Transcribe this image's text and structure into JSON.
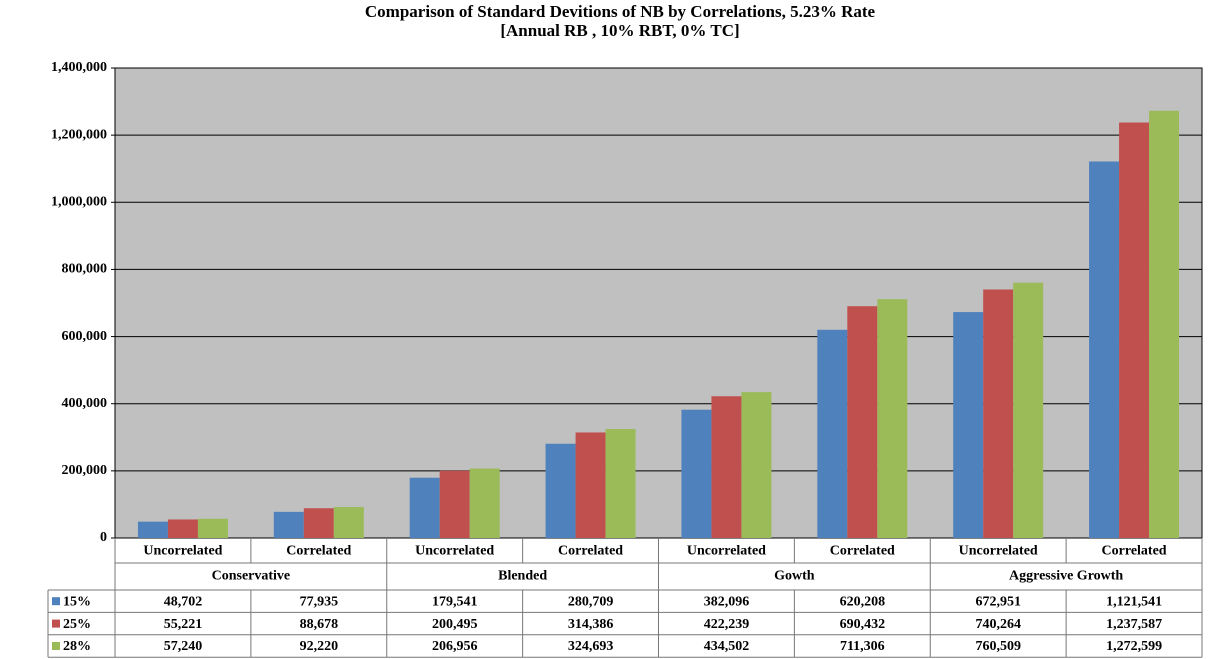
{
  "chart_data": {
    "type": "bar",
    "title": "Comparison of Standard Devitions of NB by Correlations, 5.23% Rate",
    "subtitle": "[Annual RB ,  10% RBT, 0% TC]",
    "categories": [
      "Uncorrelated",
      "Correlated",
      "Uncorrelated",
      "Correlated",
      "Uncorrelated",
      "Correlated",
      "Uncorrelated",
      "Correlated"
    ],
    "groups": [
      "Conservative",
      "Blended",
      "Gowth",
      "Aggressive Growth"
    ],
    "series": [
      {
        "name": "15%",
        "color": "#4f81bd",
        "values": [
          48702,
          77935,
          179541,
          280709,
          382096,
          620208,
          672951,
          1121541
        ],
        "value_labels": [
          "48,702",
          "77,935",
          "179,541",
          "280,709",
          "382,096",
          "620,208",
          "672,951",
          "1,121,541"
        ]
      },
      {
        "name": "25%",
        "color": "#c0504d",
        "values": [
          55221,
          88678,
          200495,
          314386,
          422239,
          690432,
          740264,
          1237587
        ],
        "value_labels": [
          "55,221",
          "88,678",
          "200,495",
          "314,386",
          "422,239",
          "690,432",
          "740,264",
          "1,237,587"
        ]
      },
      {
        "name": "28%",
        "color": "#9bbb59",
        "values": [
          57240,
          92220,
          206956,
          324693,
          434502,
          711306,
          760509,
          1272599
        ],
        "value_labels": [
          "57,240",
          "92,220",
          "206,956",
          "324,693",
          "434,502",
          "711,306",
          "760,509",
          "1,272,599"
        ]
      }
    ],
    "ylim": [
      0,
      1400000
    ],
    "yticks": [
      0,
      {
        "value": 200000,
        "label": "200,000"
      },
      {
        "value": 400000,
        "label": "400,000"
      },
      {
        "value": 600000,
        "label": "600,000"
      },
      {
        "value": 800000,
        "label": "800,000"
      },
      {
        "value": 1000000,
        "label": "1,000,000"
      },
      {
        "value": 1200000,
        "label": "1,200,000"
      },
      {
        "value": 1400000,
        "label": "1,400,000"
      }
    ],
    "grid": true,
    "plot_background": "#c0c0c0"
  }
}
